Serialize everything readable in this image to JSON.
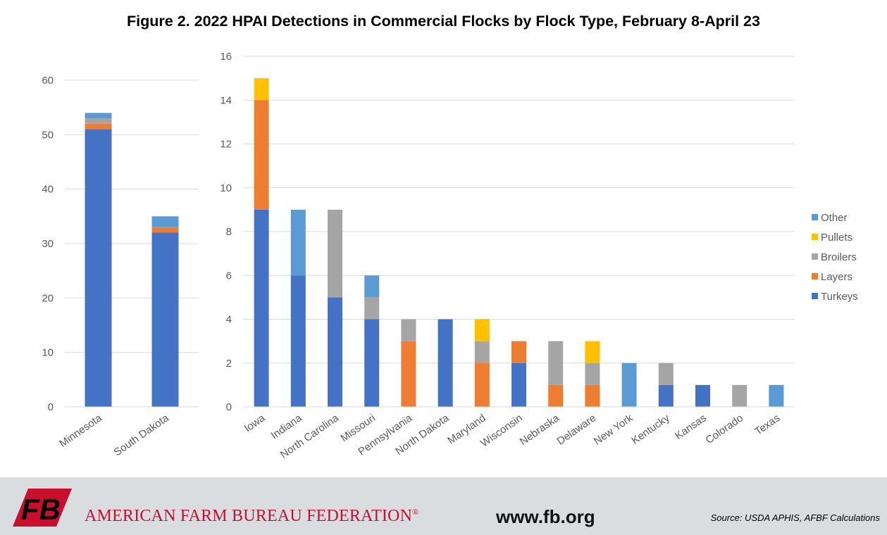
{
  "title": "Figure 2. 2022 HPAI Detections in Commercial Flocks by Flock Type, February 8-April 23",
  "colors": {
    "Turkeys": "#4472c4",
    "Layers": "#ed7d31",
    "Broilers": "#a5a5a5",
    "Pullets": "#ffc000",
    "Other": "#5b9bd5"
  },
  "chart_data": [
    {
      "type": "bar",
      "stacked": true,
      "categories": [
        "Minnesota",
        "South Dakota"
      ],
      "series": [
        {
          "name": "Turkeys",
          "values": [
            51,
            32
          ]
        },
        {
          "name": "Layers",
          "values": [
            1,
            1
          ]
        },
        {
          "name": "Broilers",
          "values": [
            1,
            0
          ]
        },
        {
          "name": "Pullets",
          "values": [
            0,
            0
          ]
        },
        {
          "name": "Other",
          "values": [
            1,
            2
          ]
        }
      ],
      "ylim": [
        0,
        60
      ],
      "yticks": [
        "0",
        "10",
        "20",
        "30",
        "40",
        "50",
        "60"
      ],
      "grid": true
    },
    {
      "type": "bar",
      "stacked": true,
      "categories": [
        "Iowa",
        "Indiana",
        "North Carolina",
        "Missouri",
        "Pennsylvania",
        "North Dakota",
        "Maryland",
        "Wisconsin",
        "Nebraska",
        "Delaware",
        "New York",
        "Kentucky",
        "Kansas",
        "Colorado",
        "Texas"
      ],
      "series": [
        {
          "name": "Turkeys",
          "values": [
            9,
            6,
            5,
            4,
            0,
            4,
            0,
            2,
            0,
            0,
            0,
            1,
            1,
            0,
            0
          ]
        },
        {
          "name": "Layers",
          "values": [
            5,
            0,
            0,
            0,
            3,
            0,
            2,
            1,
            1,
            1,
            0,
            0,
            0,
            0,
            0
          ]
        },
        {
          "name": "Broilers",
          "values": [
            0,
            0,
            4,
            1,
            1,
            0,
            1,
            0,
            2,
            1,
            0,
            1,
            0,
            1,
            0
          ]
        },
        {
          "name": "Pullets",
          "values": [
            1,
            0,
            0,
            0,
            0,
            0,
            1,
            0,
            0,
            1,
            0,
            0,
            0,
            0,
            0
          ]
        },
        {
          "name": "Other",
          "values": [
            0,
            3,
            0,
            1,
            0,
            0,
            0,
            0,
            0,
            0,
            2,
            0,
            0,
            0,
            1
          ]
        }
      ],
      "ylim": [
        0,
        16
      ],
      "yticks": [
        "0",
        "2",
        "4",
        "6",
        "8",
        "10",
        "12",
        "14",
        "16"
      ],
      "grid": true,
      "legend": {
        "placement": "right",
        "entries": [
          "Other",
          "Pullets",
          "Broilers",
          "Layers",
          "Turkeys"
        ]
      }
    }
  ],
  "footer": {
    "org_name": "American Farm Bureau Federation",
    "registered_mark": "®",
    "url": "www.fb.org",
    "source": "Source: USDA APHIS, AFBF Calculations",
    "logo_text": "FB"
  }
}
